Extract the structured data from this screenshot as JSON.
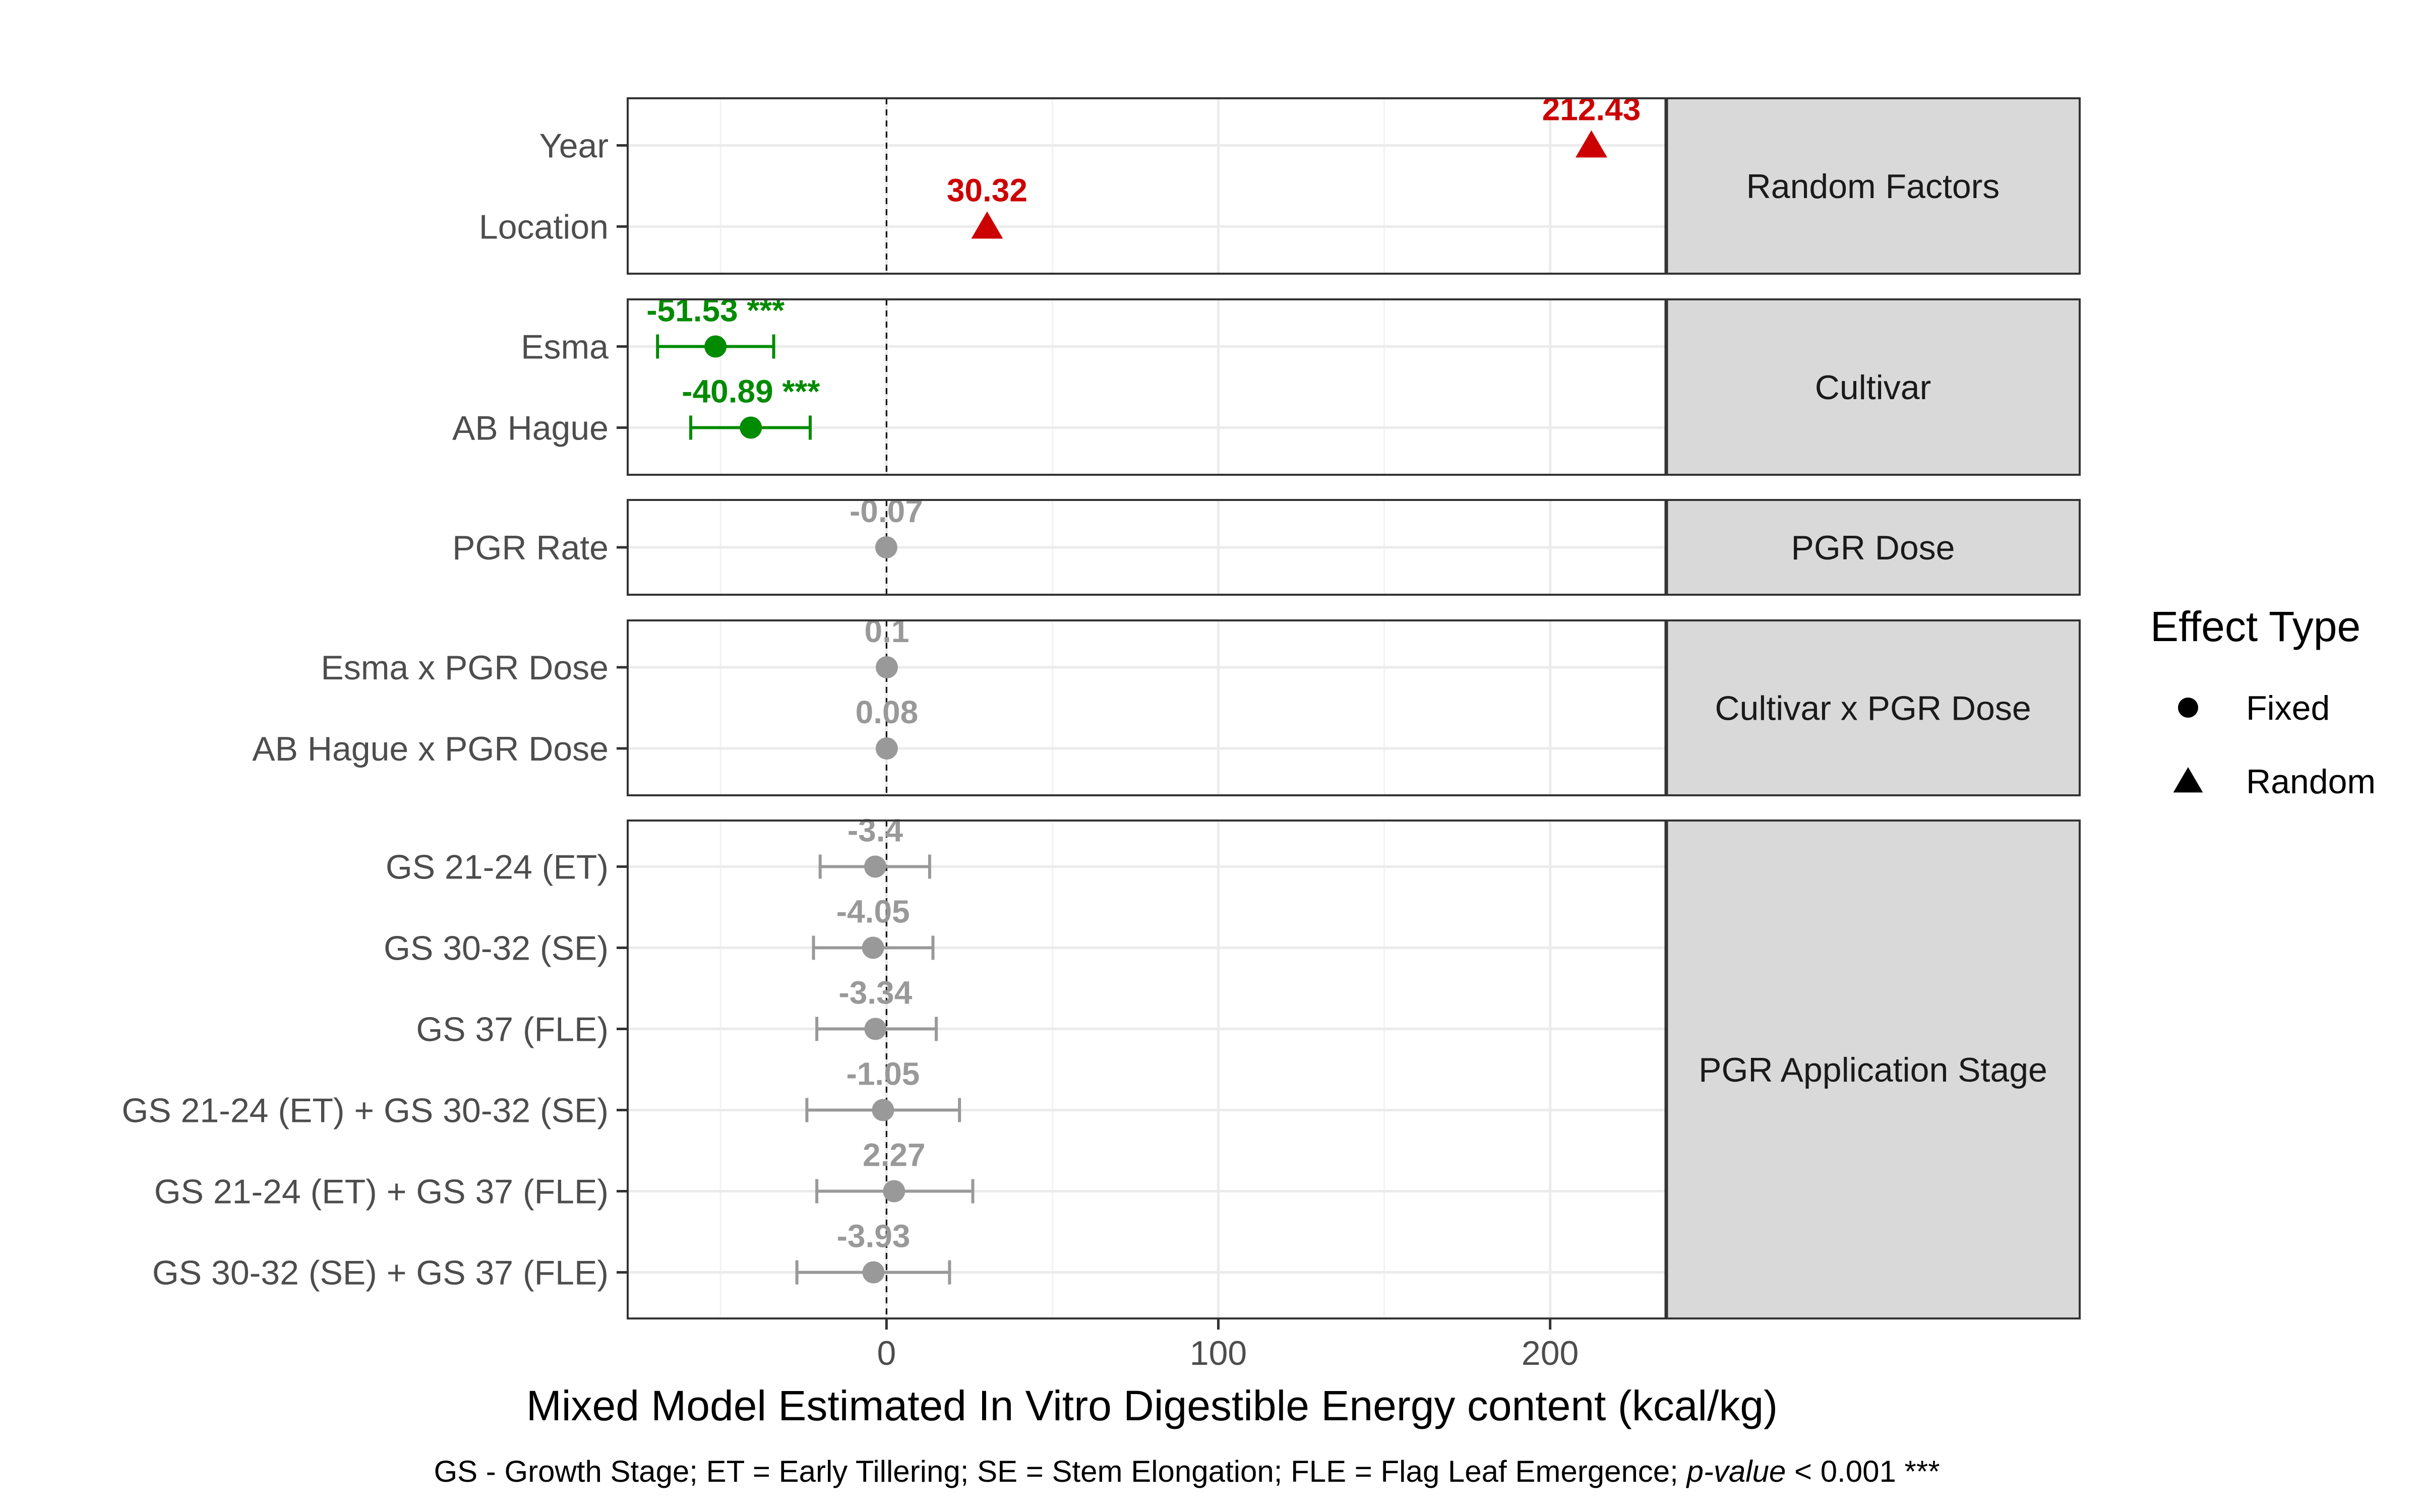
{
  "chart_data": {
    "type": "scatter",
    "subtype": "faceted forest plot with error bars",
    "xlabel": "Mixed Model Estimated In Vitro Digestible Energy content (kcal/kg)",
    "caption": {
      "main": "GS - Growth Stage; ET = Early Tillering; SE = Stem Elongation; FLE = Flag Leaf Emergence; ",
      "italic": "p-value",
      "tail": " < 0.001 ***"
    },
    "xlim": [
      -78,
      235
    ],
    "x_ticks": [
      0,
      100,
      200
    ],
    "x_tick_labels": [
      "0",
      "100",
      "200"
    ],
    "reference_line_x": 0,
    "grid": true,
    "legend": {
      "title": "Effect Type",
      "placement": "right",
      "items": [
        {
          "label": "Fixed",
          "shape": "circle"
        },
        {
          "label": "Random",
          "shape": "triangle"
        }
      ]
    },
    "colors": {
      "random": "#cc0000",
      "significant": "#008b00",
      "nonsignificant": "#999999",
      "strip": "#d9d9d9"
    },
    "panels": [
      {
        "strip": "Random Factors",
        "terms": [
          {
            "label": "Year",
            "value": 212.43,
            "value_label": "212.43",
            "lo": null,
            "hi": null,
            "effect": "Random",
            "group": "random"
          },
          {
            "label": "Location",
            "value": 30.32,
            "value_label": "30.32",
            "lo": null,
            "hi": null,
            "effect": "Random",
            "group": "random"
          }
        ]
      },
      {
        "strip": "Cultivar",
        "terms": [
          {
            "label": "Esma",
            "value": -51.53,
            "value_label": "-51.53 ***",
            "lo": -69,
            "hi": -34,
            "effect": "Fixed",
            "group": "significant"
          },
          {
            "label": "AB Hague",
            "value": -40.89,
            "value_label": "-40.89 ***",
            "lo": -59,
            "hi": -23,
            "effect": "Fixed",
            "group": "significant"
          }
        ]
      },
      {
        "strip": "PGR Dose",
        "terms": [
          {
            "label": "PGR Rate",
            "value": -0.07,
            "value_label": "-0.07",
            "lo": null,
            "hi": null,
            "effect": "Fixed",
            "group": "nonsignificant"
          }
        ]
      },
      {
        "strip": "Cultivar x PGR Dose",
        "terms": [
          {
            "label": "Esma x PGR Dose",
            "value": 0.1,
            "value_label": "0.1",
            "lo": null,
            "hi": null,
            "effect": "Fixed",
            "group": "nonsignificant"
          },
          {
            "label": "AB Hague x PGR Dose",
            "value": 0.08,
            "value_label": "0.08",
            "lo": null,
            "hi": null,
            "effect": "Fixed",
            "group": "nonsignificant"
          }
        ]
      },
      {
        "strip": "PGR Application Stage",
        "terms": [
          {
            "label": "GS 21-24 (ET)",
            "value": -3.4,
            "value_label": "-3.4",
            "lo": -20,
            "hi": 13,
            "effect": "Fixed",
            "group": "nonsignificant"
          },
          {
            "label": "GS 30-32 (SE)",
            "value": -4.05,
            "value_label": "-4.05",
            "lo": -22,
            "hi": 14,
            "effect": "Fixed",
            "group": "nonsignificant"
          },
          {
            "label": "GS 37 (FLE)",
            "value": -3.34,
            "value_label": "-3.34",
            "lo": -21,
            "hi": 15,
            "effect": "Fixed",
            "group": "nonsignificant"
          },
          {
            "label": "GS 21-24 (ET) + GS 30-32 (SE)",
            "value": -1.05,
            "value_label": "-1.05",
            "lo": -24,
            "hi": 22,
            "effect": "Fixed",
            "group": "nonsignificant"
          },
          {
            "label": "GS 21-24 (ET) + GS 37 (FLE)",
            "value": 2.27,
            "value_label": "2.27",
            "lo": -21,
            "hi": 26,
            "effect": "Fixed",
            "group": "nonsignificant"
          },
          {
            "label": "GS 30-32 (SE) + GS 37 (FLE)",
            "value": -3.93,
            "value_label": "-3.93",
            "lo": -27,
            "hi": 19,
            "effect": "Fixed",
            "group": "nonsignificant"
          }
        ]
      }
    ]
  }
}
